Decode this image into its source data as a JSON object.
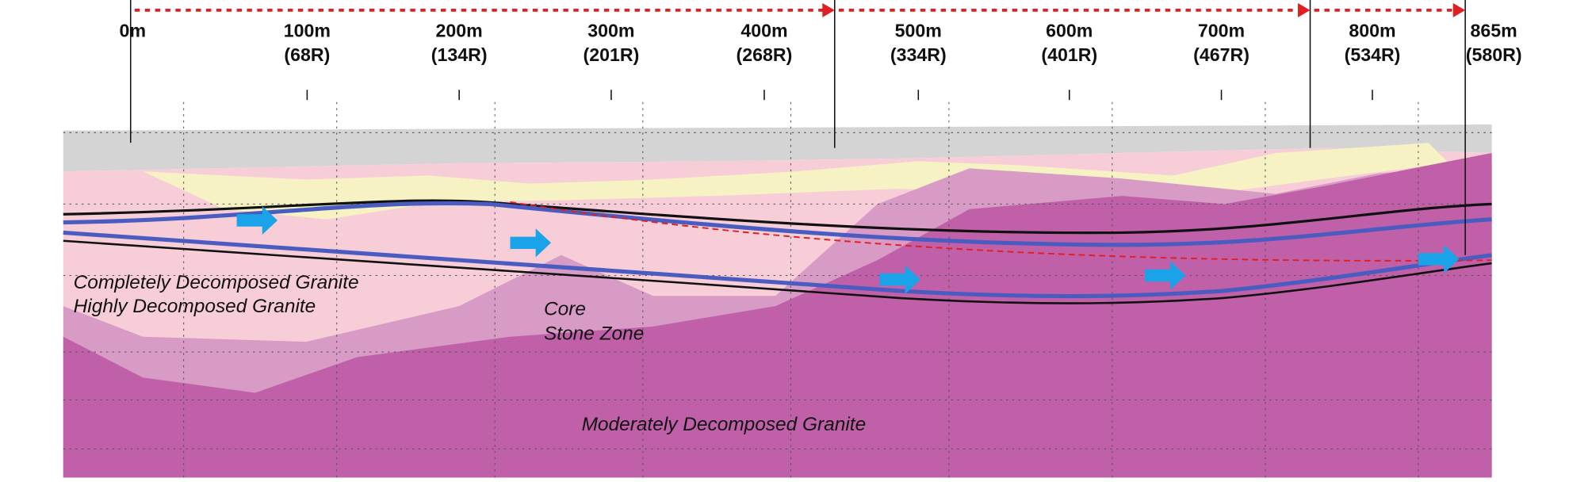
{
  "chainages": [
    {
      "distance": "0m"
    },
    {
      "distance": "100m",
      "rings": "(68R)"
    },
    {
      "distance": "200m",
      "rings": "(134R)"
    },
    {
      "distance": "300m",
      "rings": "(201R)"
    },
    {
      "distance": "400m",
      "rings": "(268R)"
    },
    {
      "distance": "500m",
      "rings": "(334R)"
    },
    {
      "distance": "600m",
      "rings": "(401R)"
    },
    {
      "distance": "700m",
      "rings": "(467R)"
    },
    {
      "distance": "800m",
      "rings": "(534R)"
    },
    {
      "distance": "865m",
      "rings": "(580R)"
    }
  ],
  "zones": {
    "completely": "Completely Decomposed Granite",
    "highly": "Highly Decomposed Granite",
    "core_stone": [
      "Core",
      "Stone Zone"
    ],
    "moderately": "Moderately Decomposed Granite"
  }
}
